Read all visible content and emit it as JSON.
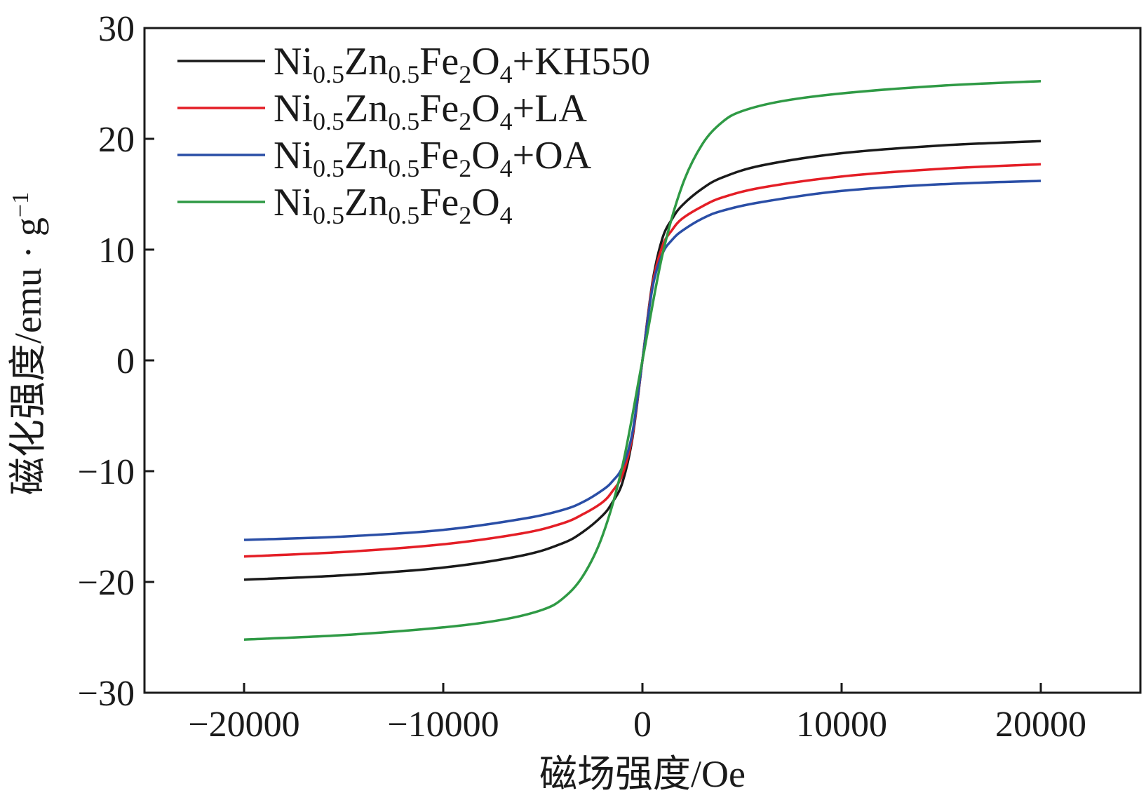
{
  "chart_data": {
    "type": "line",
    "title": "",
    "xlabel": "磁场强度/Oe",
    "ylabel": "磁化强度/emu · g",
    "ylabel_exponent": "−1",
    "xlim": [
      -25000,
      25000
    ],
    "ylim": [
      -30,
      30
    ],
    "x_ticks": [
      -20000,
      -10000,
      0,
      10000,
      20000
    ],
    "x_tick_labels": [
      "−20000",
      "−10000",
      "0",
      "10000",
      "20000"
    ],
    "y_ticks": [
      -30,
      -20,
      -10,
      0,
      10,
      20,
      30
    ],
    "y_tick_labels": [
      "−30",
      "−20",
      "−10",
      "0",
      "10",
      "20",
      "30"
    ],
    "grid": false,
    "legend_position": "top-left",
    "series": [
      {
        "name": "Ni0.5Zn0.5Fe2O4+KH550",
        "label": {
          "base1": "Ni",
          "sub1": "0.5",
          "base2": "Zn",
          "sub2": "0.5",
          "base3": "Fe",
          "sub3": "2",
          "base4": "O",
          "sub4": "4",
          "suffix": "+KH550"
        },
        "color": "#1a1a1a",
        "x": [
          -20000,
          -15000,
          -10000,
          -6000,
          -4000,
          -3000,
          -2000,
          -1500,
          -1000,
          -500,
          0,
          500,
          1000,
          1500,
          2000,
          3000,
          4000,
          6000,
          10000,
          15000,
          20000
        ],
        "y": [
          -19.8,
          -19.4,
          -18.7,
          -17.6,
          -16.5,
          -15.5,
          -14.0,
          -12.8,
          -11.0,
          -7.0,
          0,
          7.0,
          11.0,
          12.8,
          14.0,
          15.5,
          16.5,
          17.6,
          18.7,
          19.4,
          19.8
        ]
      },
      {
        "name": "Ni0.5Zn0.5Fe2O4+LA",
        "label": {
          "base1": "Ni",
          "sub1": "0.5",
          "base2": "Zn",
          "sub2": "0.5",
          "base3": "Fe",
          "sub3": "2",
          "base4": "O",
          "sub4": "4",
          "suffix": "+LA"
        },
        "color": "#e41e26",
        "x": [
          -20000,
          -15000,
          -10000,
          -6000,
          -4000,
          -3000,
          -2000,
          -1500,
          -1000,
          -500,
          0,
          500,
          1000,
          1500,
          2000,
          3000,
          4000,
          6000,
          10000,
          15000,
          20000
        ],
        "y": [
          -17.7,
          -17.3,
          -16.6,
          -15.6,
          -14.7,
          -13.9,
          -12.8,
          -11.8,
          -10.3,
          -6.8,
          0,
          6.8,
          10.3,
          11.8,
          12.8,
          13.9,
          14.7,
          15.6,
          16.6,
          17.3,
          17.7
        ]
      },
      {
        "name": "Ni0.5Zn0.5Fe2O4+OA",
        "label": {
          "base1": "Ni",
          "sub1": "0.5",
          "base2": "Zn",
          "sub2": "0.5",
          "base3": "Fe",
          "sub3": "2",
          "base4": "O",
          "sub4": "4",
          "suffix": "+OA"
        },
        "color": "#2a4ea6",
        "x": [
          -20000,
          -15000,
          -10000,
          -6000,
          -4000,
          -3000,
          -2000,
          -1500,
          -1000,
          -500,
          0,
          500,
          1000,
          1500,
          2000,
          3000,
          4000,
          6000,
          10000,
          15000,
          20000
        ],
        "y": [
          -16.2,
          -15.9,
          -15.3,
          -14.3,
          -13.5,
          -12.8,
          -11.7,
          -10.9,
          -9.6,
          -6.5,
          0,
          6.5,
          9.6,
          10.9,
          11.7,
          12.8,
          13.5,
          14.3,
          15.3,
          15.9,
          16.2
        ]
      },
      {
        "name": "Ni0.5Zn0.5Fe2O4",
        "label": {
          "base1": "Ni",
          "sub1": "0.5",
          "base2": "Zn",
          "sub2": "0.5",
          "base3": "Fe",
          "sub3": "2",
          "base4": "O",
          "sub4": "4",
          "suffix": ""
        },
        "color": "#2f9a45",
        "x": [
          -20000,
          -15000,
          -10000,
          -7000,
          -5000,
          -4000,
          -3000,
          -2000,
          -1000,
          0,
          1000,
          2000,
          3000,
          4000,
          5000,
          7000,
          10000,
          15000,
          20000
        ],
        "y": [
          -25.2,
          -24.8,
          -24.1,
          -23.4,
          -22.5,
          -21.5,
          -19.5,
          -15.8,
          -9.5,
          0,
          9.5,
          15.8,
          19.5,
          21.5,
          22.5,
          23.4,
          24.1,
          24.8,
          25.2
        ]
      }
    ]
  }
}
